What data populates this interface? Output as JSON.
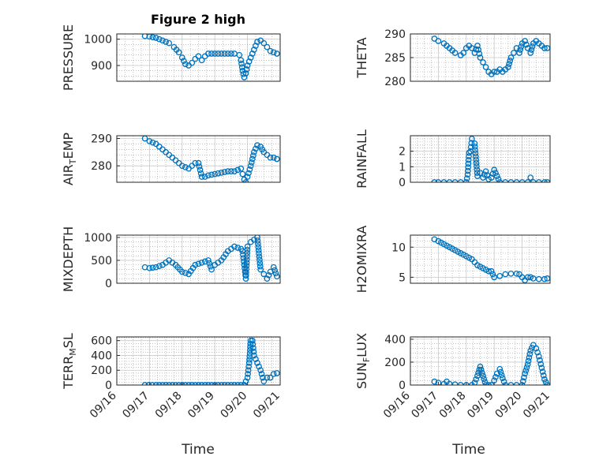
{
  "figure": {
    "title": "Figure 2 high",
    "xlabel": "Time",
    "marker_color": "#0072BD"
  },
  "chart_data": [
    {
      "type": "scatter",
      "ylabel": "PRESSURE",
      "xlim": [
        0,
        5
      ],
      "ylim": [
        840,
        1020
      ],
      "yticks": [
        900,
        1000
      ],
      "xticks": [],
      "xticklabels": [],
      "x": [
        0.86,
        1,
        1.2,
        1.4,
        1.6,
        1.75,
        1.9,
        2.0,
        2.1,
        2.2,
        2.3,
        2.4,
        2.5,
        2.6,
        2.7,
        2.8,
        3.0,
        3.2,
        3.4,
        3.6,
        3.75,
        3.8,
        3.85,
        3.9,
        3.95,
        4.0,
        4.1,
        4.2,
        4.3,
        4.4,
        4.5,
        4.6,
        4.7,
        4.8,
        4.9
      ],
      "y": [
        1012,
        1010,
        1005,
        995,
        985,
        970,
        950,
        930,
        905,
        900,
        910,
        925,
        935,
        920,
        935,
        945,
        945,
        945,
        945,
        945,
        940,
        920,
        880,
        855,
        870,
        900,
        930,
        960,
        990,
        995,
        985,
        970,
        955,
        950,
        945
      ]
    },
    {
      "type": "scatter",
      "ylabel": "THETA",
      "xlim": [
        0,
        5
      ],
      "ylim": [
        280,
        290
      ],
      "yticks": [
        280,
        285,
        290
      ],
      "xticks": [],
      "xticklabels": [],
      "x": [
        0.86,
        1,
        1.2,
        1.4,
        1.6,
        1.8,
        1.9,
        2.0,
        2.1,
        2.2,
        2.3,
        2.4,
        2.5,
        2.6,
        2.7,
        2.8,
        2.9,
        3.0,
        3.1,
        3.2,
        3.3,
        3.4,
        3.5,
        3.6,
        3.7,
        3.8,
        3.9,
        4.0,
        4.1,
        4.2,
        4.3,
        4.4,
        4.5,
        4.6,
        4.7,
        4.8,
        4.9
      ],
      "y": [
        289,
        288.5,
        288,
        287,
        286,
        285.5,
        286,
        287,
        287.5,
        287,
        286,
        287.5,
        285,
        284,
        283,
        282,
        281.5,
        282,
        282,
        282.5,
        282,
        282.5,
        283,
        285,
        286,
        287,
        286,
        288,
        288.5,
        287,
        286,
        288,
        288.5,
        288,
        287.5,
        287,
        287
      ]
    },
    {
      "type": "scatter",
      "ylabel": "AIR_TEMP",
      "xlim": [
        0,
        5
      ],
      "ylim": [
        274,
        291
      ],
      "yticks": [
        280,
        290
      ],
      "xticks": [],
      "xticklabels": [],
      "x": [
        0.86,
        1,
        1.2,
        1.4,
        1.6,
        1.8,
        2.0,
        2.2,
        2.3,
        2.4,
        2.5,
        2.6,
        2.7,
        2.8,
        3.0,
        3.2,
        3.4,
        3.6,
        3.8,
        3.85,
        3.9,
        3.95,
        4.0,
        4.1,
        4.2,
        4.3,
        4.4,
        4.5,
        4.6,
        4.7,
        4.8,
        4.9
      ],
      "y": [
        290,
        289,
        288,
        286,
        284,
        282,
        280,
        279,
        280,
        281,
        281,
        276,
        276,
        276.5,
        277,
        277.5,
        278,
        278,
        279,
        277,
        275,
        274,
        276,
        280,
        285,
        287.5,
        287,
        285,
        284,
        283,
        283,
        282.5
      ]
    },
    {
      "type": "scatter",
      "ylabel": "RAINFALL",
      "xlim": [
        0,
        5
      ],
      "ylim": [
        0,
        3
      ],
      "yticks": [
        0,
        1,
        2
      ],
      "xticks": [],
      "xticklabels": [],
      "x": [
        0.86,
        1,
        1.2,
        1.4,
        1.6,
        1.8,
        2.0,
        2.05,
        2.1,
        2.15,
        2.2,
        2.3,
        2.4,
        2.5,
        2.6,
        2.7,
        2.8,
        2.9,
        3.0,
        3.2,
        3.4,
        3.6,
        3.8,
        4.0,
        4.2,
        4.3,
        4.4,
        4.6,
        4.8,
        4.9
      ],
      "y": [
        0,
        0,
        0,
        0,
        0,
        0,
        0,
        0.5,
        1.9,
        2.0,
        2.8,
        2.5,
        0.4,
        0.6,
        0.3,
        0.7,
        0.2,
        0.3,
        0.8,
        0,
        0,
        0,
        0,
        0,
        0,
        0.3,
        0,
        0,
        0,
        0
      ]
    },
    {
      "type": "scatter",
      "ylabel": "MIXDEPTH",
      "xlim": [
        0,
        5
      ],
      "ylim": [
        0,
        1050
      ],
      "yticks": [
        0,
        500,
        1000
      ],
      "xticks": [],
      "xticklabels": [],
      "x": [
        0.86,
        1,
        1.2,
        1.4,
        1.6,
        1.8,
        2.0,
        2.2,
        2.4,
        2.6,
        2.8,
        2.9,
        3.0,
        3.2,
        3.4,
        3.6,
        3.8,
        3.85,
        3.9,
        3.95,
        4.0,
        4.1,
        4.2,
        4.3,
        4.4,
        4.5,
        4.6,
        4.7,
        4.8,
        4.9
      ],
      "y": [
        350,
        330,
        350,
        400,
        500,
        400,
        250,
        200,
        400,
        450,
        500,
        300,
        400,
        500,
        700,
        800,
        750,
        700,
        400,
        100,
        800,
        900,
        950,
        1000,
        300,
        200,
        100,
        250,
        350,
        150
      ]
    },
    {
      "type": "scatter",
      "ylabel": "H2OMIXRA",
      "xlim": [
        0,
        5
      ],
      "ylim": [
        4,
        12
      ],
      "yticks": [
        5,
        10
      ],
      "xticks": [],
      "xticklabels": [],
      "x": [
        0.86,
        1,
        1.2,
        1.4,
        1.6,
        1.8,
        2.0,
        2.2,
        2.4,
        2.6,
        2.8,
        2.9,
        3.0,
        3.2,
        3.4,
        3.6,
        3.8,
        3.9,
        4.0,
        4.1,
        4.2,
        4.3,
        4.4,
        4.6,
        4.8,
        4.9
      ],
      "y": [
        11.3,
        11,
        10.5,
        10,
        9.5,
        9,
        8.5,
        8,
        7,
        6.5,
        6,
        6,
        5,
        5.2,
        5.5,
        5.6,
        5.6,
        5.5,
        5,
        4.5,
        5,
        5,
        4.8,
        4.7,
        4.7,
        4.8
      ]
    },
    {
      "type": "scatter",
      "ylabel": "TERR_MSL",
      "xlim": [
        0,
        5
      ],
      "ylim": [
        0,
        650
      ],
      "yticks": [
        0,
        200,
        400,
        600
      ],
      "xticks": [
        0,
        1,
        2,
        3,
        4,
        5
      ],
      "xticklabels": [
        "09/16",
        "09/17",
        "09/18",
        "09/19",
        "09/20",
        "09/21"
      ],
      "x": [
        0.86,
        1.2,
        1.6,
        2.0,
        2.4,
        2.8,
        3.2,
        3.6,
        3.9,
        4.0,
        4.05,
        4.1,
        4.15,
        4.2,
        4.3,
        4.4,
        4.5,
        4.6,
        4.7,
        4.8,
        4.9
      ],
      "y": [
        0,
        0,
        0,
        0,
        0,
        0,
        0,
        0,
        0,
        100,
        300,
        600,
        600,
        400,
        300,
        200,
        50,
        100,
        100,
        150,
        160
      ]
    },
    {
      "type": "scatter",
      "ylabel": "SUN_FLUX",
      "xlim": [
        0,
        5
      ],
      "ylim": [
        0,
        420
      ],
      "yticks": [
        0,
        200,
        400
      ],
      "xticks": [
        0,
        1,
        2,
        3,
        4,
        5
      ],
      "xticklabels": [
        "09/16",
        "09/17",
        "09/18",
        "09/19",
        "09/20",
        "09/21"
      ],
      "x": [
        0.86,
        1,
        1.2,
        1.3,
        1.4,
        1.6,
        1.8,
        2.0,
        2.2,
        2.3,
        2.4,
        2.5,
        2.6,
        2.7,
        2.8,
        2.9,
        3.0,
        3.1,
        3.2,
        3.3,
        3.4,
        3.6,
        3.8,
        4.0,
        4.1,
        4.2,
        4.3,
        4.4,
        4.5,
        4.6,
        4.7,
        4.8,
        4.9
      ],
      "y": [
        30,
        20,
        10,
        30,
        10,
        5,
        0,
        0,
        0,
        20,
        80,
        160,
        80,
        0,
        0,
        0,
        40,
        100,
        140,
        60,
        0,
        0,
        0,
        0,
        100,
        180,
        300,
        350,
        320,
        250,
        150,
        50,
        0
      ]
    }
  ]
}
